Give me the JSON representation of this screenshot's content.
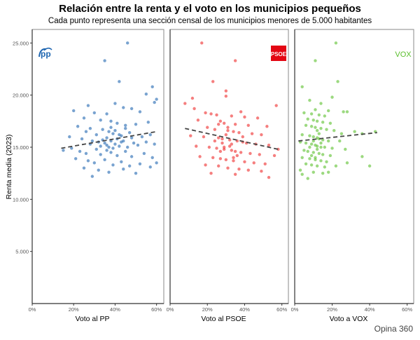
{
  "chart_data": {
    "type": "scatter",
    "title": "Relación entre la renta y el voto en los municipios pequeños",
    "subtitle": "Cada punto representa una sección censal de los municipios menores de 5.000 habitantes",
    "ylabel": "Renta media (2023)",
    "ylim": [
      0,
      26300
    ],
    "yticks": [
      5000,
      10000,
      15000,
      20000,
      25000
    ],
    "ytick_labels": [
      "5.000",
      "10.000",
      "15.000",
      "20.000",
      "25.000"
    ],
    "xlim": [
      0,
      63.5
    ],
    "xticks": [
      0,
      20,
      40,
      60
    ],
    "xtick_labels": [
      "0%",
      "20%",
      "40%",
      "60%"
    ],
    "grid": false,
    "caption": "Opina 360",
    "panels": [
      {
        "xlabel": "Voto al PP",
        "logo_text": "PP",
        "color": "#1f66b1",
        "trend": [
          [
            14,
            14900
          ],
          [
            60,
            16500
          ]
        ],
        "points": [
          [
            46,
            25000
          ],
          [
            35,
            23300
          ],
          [
            42,
            21300
          ],
          [
            58,
            20800
          ],
          [
            55,
            20100
          ],
          [
            60,
            19600
          ],
          [
            27,
            19000
          ],
          [
            20,
            18500
          ],
          [
            59,
            19300
          ],
          [
            40,
            19200
          ],
          [
            44,
            18800
          ],
          [
            48,
            18700
          ],
          [
            52,
            18400
          ],
          [
            30,
            18300
          ],
          [
            36,
            18200
          ],
          [
            25,
            17800
          ],
          [
            33,
            17600
          ],
          [
            38,
            17500
          ],
          [
            41,
            17300
          ],
          [
            45,
            17100
          ],
          [
            50,
            17200
          ],
          [
            56,
            17400
          ],
          [
            22,
            17000
          ],
          [
            28,
            16800
          ],
          [
            34,
            16700
          ],
          [
            37,
            16500
          ],
          [
            39,
            16300
          ],
          [
            43,
            16100
          ],
          [
            47,
            16400
          ],
          [
            53,
            16000
          ],
          [
            57,
            16200
          ],
          [
            18,
            16000
          ],
          [
            24,
            15800
          ],
          [
            29,
            15600
          ],
          [
            32,
            15500
          ],
          [
            35,
            15400
          ],
          [
            36,
            15200
          ],
          [
            40,
            15300
          ],
          [
            42,
            15100
          ],
          [
            44,
            15600
          ],
          [
            46,
            15000
          ],
          [
            49,
            15400
          ],
          [
            51,
            15200
          ],
          [
            55,
            15500
          ],
          [
            59,
            15300
          ],
          [
            15,
            14700
          ],
          [
            19,
            14900
          ],
          [
            23,
            14600
          ],
          [
            26,
            14400
          ],
          [
            31,
            14800
          ],
          [
            33,
            14300
          ],
          [
            38,
            14500
          ],
          [
            41,
            14200
          ],
          [
            45,
            14600
          ],
          [
            48,
            14100
          ],
          [
            54,
            14400
          ],
          [
            58,
            14000
          ],
          [
            21,
            13900
          ],
          [
            27,
            13700
          ],
          [
            30,
            13500
          ],
          [
            35,
            13800
          ],
          [
            39,
            13300
          ],
          [
            43,
            13600
          ],
          [
            47,
            13200
          ],
          [
            52,
            13400
          ],
          [
            57,
            13100
          ],
          [
            60,
            13500
          ],
          [
            25,
            13000
          ],
          [
            32,
            12800
          ],
          [
            37,
            12600
          ],
          [
            44,
            12900
          ],
          [
            29,
            12200
          ],
          [
            50,
            12500
          ],
          [
            38,
            16900
          ],
          [
            40,
            16600
          ],
          [
            36,
            15900
          ],
          [
            34,
            15700
          ],
          [
            42,
            16200
          ],
          [
            39,
            14900
          ],
          [
            37,
            15000
          ],
          [
            41,
            15800
          ],
          [
            43,
            15500
          ],
          [
            38,
            15600
          ],
          [
            36,
            14700
          ],
          [
            33,
            15100
          ],
          [
            45,
            16800
          ],
          [
            31,
            16200
          ],
          [
            28,
            15300
          ],
          [
            26,
            16500
          ],
          [
            48,
            15900
          ]
        ]
      },
      {
        "xlabel": "Voto al PSOE",
        "logo_text": "PSOE",
        "color": "#ee2a2a",
        "trend": [
          [
            8,
            16800
          ],
          [
            58,
            14800
          ]
        ],
        "points": [
          [
            17,
            25000
          ],
          [
            35,
            23300
          ],
          [
            23,
            21300
          ],
          [
            30,
            20400
          ],
          [
            30,
            19900
          ],
          [
            12,
            19700
          ],
          [
            8,
            19200
          ],
          [
            57,
            19000
          ],
          [
            13,
            18700
          ],
          [
            38,
            18400
          ],
          [
            19,
            18300
          ],
          [
            22,
            18200
          ],
          [
            25,
            18100
          ],
          [
            33,
            18000
          ],
          [
            40,
            17900
          ],
          [
            47,
            17800
          ],
          [
            15,
            17600
          ],
          [
            27,
            17500
          ],
          [
            29,
            17300
          ],
          [
            35,
            17200
          ],
          [
            42,
            17100
          ],
          [
            52,
            17000
          ],
          [
            20,
            16900
          ],
          [
            24,
            16700
          ],
          [
            31,
            16600
          ],
          [
            34,
            16500
          ],
          [
            37,
            16400
          ],
          [
            44,
            16300
          ],
          [
            49,
            16200
          ],
          [
            11,
            16100
          ],
          [
            18,
            16000
          ],
          [
            26,
            15900
          ],
          [
            28,
            15800
          ],
          [
            32,
            15700
          ],
          [
            36,
            15600
          ],
          [
            39,
            15500
          ],
          [
            41,
            15400
          ],
          [
            46,
            15300
          ],
          [
            53,
            15200
          ],
          [
            14,
            15100
          ],
          [
            21,
            15000
          ],
          [
            25,
            14900
          ],
          [
            29,
            14800
          ],
          [
            33,
            14700
          ],
          [
            35,
            14600
          ],
          [
            38,
            14500
          ],
          [
            43,
            14400
          ],
          [
            48,
            14300
          ],
          [
            56,
            14200
          ],
          [
            16,
            14100
          ],
          [
            23,
            14000
          ],
          [
            27,
            13900
          ],
          [
            30,
            13800
          ],
          [
            34,
            13700
          ],
          [
            40,
            13600
          ],
          [
            45,
            13500
          ],
          [
            51,
            13400
          ],
          [
            19,
            13300
          ],
          [
            26,
            13200
          ],
          [
            31,
            13000
          ],
          [
            37,
            12900
          ],
          [
            42,
            12800
          ],
          [
            49,
            12700
          ],
          [
            22,
            12500
          ],
          [
            35,
            12400
          ],
          [
            53,
            12100
          ],
          [
            30,
            16200
          ],
          [
            28,
            15400
          ],
          [
            32,
            15100
          ],
          [
            27,
            14600
          ],
          [
            31,
            16900
          ],
          [
            24,
            15600
          ],
          [
            36,
            14200
          ],
          [
            33,
            15300
          ],
          [
            29,
            15000
          ],
          [
            39,
            16000
          ],
          [
            34,
            14000
          ],
          [
            26,
            17200
          ],
          [
            58,
            14800
          ]
        ]
      },
      {
        "xlabel": "Voto a VOX",
        "logo_text": "VOX",
        "color": "#5abf2c",
        "trend": [
          [
            2,
            15600
          ],
          [
            44,
            16400
          ]
        ],
        "points": [
          [
            22,
            25000
          ],
          [
            11,
            23300
          ],
          [
            23,
            21300
          ],
          [
            4,
            20800
          ],
          [
            20,
            19800
          ],
          [
            8,
            19500
          ],
          [
            14,
            19200
          ],
          [
            11,
            18600
          ],
          [
            18,
            18500
          ],
          [
            26,
            18400
          ],
          [
            28,
            18400
          ],
          [
            5,
            18300
          ],
          [
            9,
            18200
          ],
          [
            13,
            18100
          ],
          [
            16,
            18000
          ],
          [
            7,
            17700
          ],
          [
            10,
            17600
          ],
          [
            12,
            17500
          ],
          [
            15,
            17400
          ],
          [
            19,
            17300
          ],
          [
            6,
            17100
          ],
          [
            9,
            17000
          ],
          [
            11,
            16900
          ],
          [
            14,
            16800
          ],
          [
            17,
            16700
          ],
          [
            21,
            16600
          ],
          [
            32,
            16500
          ],
          [
            43,
            16500
          ],
          [
            25,
            16300
          ],
          [
            36,
            16300
          ],
          [
            4,
            16200
          ],
          [
            8,
            16100
          ],
          [
            10,
            16000
          ],
          [
            12,
            15900
          ],
          [
            13,
            15800
          ],
          [
            15,
            15700
          ],
          [
            18,
            15600
          ],
          [
            24,
            15600
          ],
          [
            3,
            15500
          ],
          [
            6,
            15400
          ],
          [
            9,
            15300
          ],
          [
            11,
            15200
          ],
          [
            12,
            15100
          ],
          [
            14,
            15000
          ],
          [
            16,
            15000
          ],
          [
            20,
            14900
          ],
          [
            27,
            14800
          ],
          [
            5,
            14700
          ],
          [
            7,
            14600
          ],
          [
            10,
            14500
          ],
          [
            13,
            14400
          ],
          [
            15,
            14300
          ],
          [
            19,
            14200
          ],
          [
            36,
            14100
          ],
          [
            4,
            14000
          ],
          [
            8,
            13900
          ],
          [
            11,
            13800
          ],
          [
            14,
            13700
          ],
          [
            17,
            13600
          ],
          [
            28,
            13500
          ],
          [
            40,
            13200
          ],
          [
            6,
            13400
          ],
          [
            9,
            13300
          ],
          [
            12,
            13200
          ],
          [
            16,
            13100
          ],
          [
            22,
            13200
          ],
          [
            3,
            12800
          ],
          [
            10,
            12600
          ],
          [
            15,
            12500
          ],
          [
            18,
            12600
          ],
          [
            4,
            12400
          ],
          [
            7,
            12000
          ],
          [
            12,
            14800
          ],
          [
            10,
            15600
          ],
          [
            13,
            16300
          ],
          [
            9,
            14200
          ],
          [
            11,
            14000
          ],
          [
            14,
            15400
          ],
          [
            12,
            16600
          ],
          [
            8,
            15000
          ]
        ]
      }
    ]
  }
}
